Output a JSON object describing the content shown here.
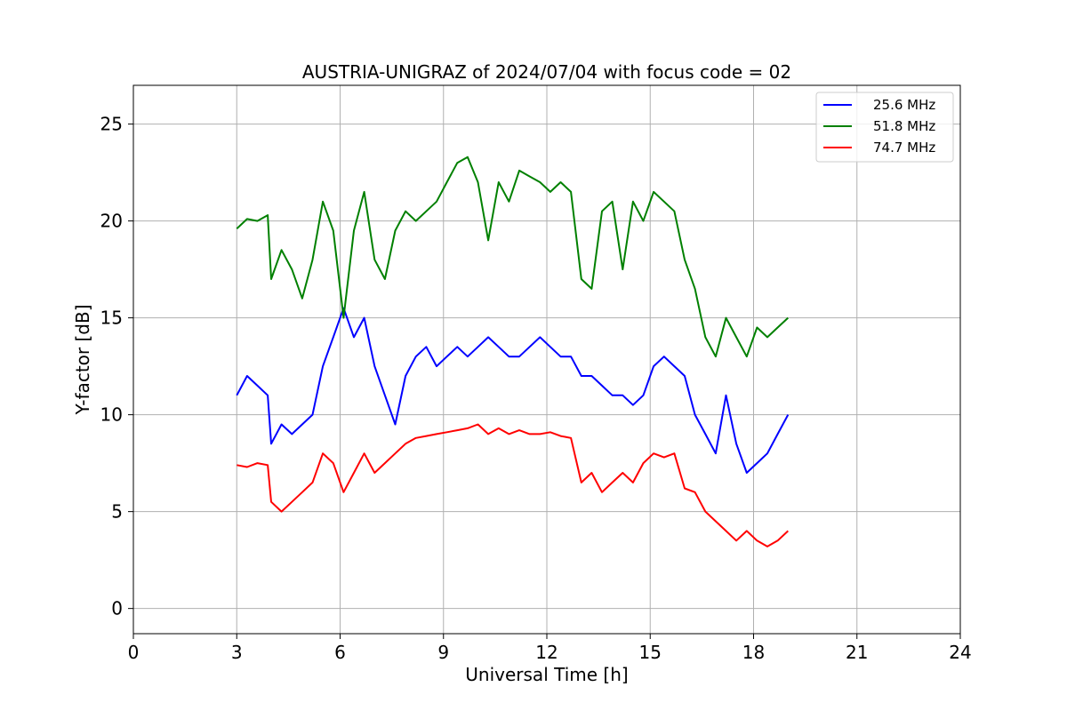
{
  "chart_data": {
    "type": "line",
    "title": "AUSTRIA-UNIGRAZ of 2024/07/04 with focus code = 02",
    "xlabel": "Universal Time [h]",
    "ylabel": "Y-factor [dB]",
    "xlim": [
      0,
      24
    ],
    "ylim": [
      -1.3,
      27
    ],
    "xticks": [
      0,
      3,
      6,
      9,
      12,
      15,
      18,
      21,
      24
    ],
    "yticks": [
      0,
      5,
      10,
      15,
      20,
      25
    ],
    "grid": true,
    "legend_position": "top-right",
    "series": [
      {
        "name": "25.6 MHz",
        "color": "#0000ff",
        "x": [
          3.0,
          3.3,
          3.6,
          3.9,
          4.0,
          4.3,
          4.6,
          4.9,
          5.2,
          5.5,
          5.8,
          6.1,
          6.4,
          6.7,
          7.0,
          7.3,
          7.6,
          7.9,
          8.2,
          8.5,
          8.8,
          9.1,
          9.4,
          9.7,
          10.0,
          10.3,
          10.6,
          10.9,
          11.2,
          11.5,
          11.8,
          12.1,
          12.4,
          12.7,
          13.0,
          13.3,
          13.6,
          13.9,
          14.2,
          14.5,
          14.8,
          15.1,
          15.4,
          15.7,
          16.0,
          16.3,
          16.6,
          16.9,
          17.2,
          17.5,
          17.8,
          18.1,
          18.4,
          18.7,
          19.0
        ],
        "y": [
          11.0,
          12.0,
          11.5,
          11.0,
          8.5,
          9.5,
          9.0,
          9.5,
          10.0,
          12.5,
          14.0,
          15.5,
          14.0,
          15.0,
          12.5,
          11.0,
          9.5,
          12.0,
          13.0,
          13.5,
          12.5,
          13.0,
          13.5,
          13.0,
          13.5,
          14.0,
          13.5,
          13.0,
          13.0,
          13.5,
          14.0,
          13.5,
          13.0,
          13.0,
          12.0,
          12.0,
          11.5,
          11.0,
          11.0,
          10.5,
          11.0,
          12.5,
          13.0,
          12.5,
          12.0,
          10.0,
          9.0,
          8.0,
          11.0,
          8.5,
          7.0,
          7.5,
          8.0,
          9.0,
          10.0
        ]
      },
      {
        "name": "51.8 MHz",
        "color": "#008000",
        "x": [
          3.0,
          3.3,
          3.6,
          3.9,
          4.0,
          4.3,
          4.6,
          4.9,
          5.2,
          5.5,
          5.8,
          6.1,
          6.4,
          6.7,
          7.0,
          7.3,
          7.6,
          7.9,
          8.2,
          8.5,
          8.8,
          9.1,
          9.4,
          9.7,
          10.0,
          10.3,
          10.6,
          10.9,
          11.2,
          11.5,
          11.8,
          12.1,
          12.4,
          12.7,
          13.0,
          13.3,
          13.6,
          13.9,
          14.2,
          14.5,
          14.8,
          15.1,
          15.4,
          15.7,
          16.0,
          16.3,
          16.6,
          16.9,
          17.2,
          17.5,
          17.8,
          18.1,
          18.4,
          18.7,
          19.0
        ],
        "y": [
          19.6,
          20.1,
          20.0,
          20.3,
          17.0,
          18.5,
          17.5,
          16.0,
          18.0,
          21.0,
          19.5,
          15.0,
          19.5,
          21.5,
          18.0,
          17.0,
          19.5,
          20.5,
          20.0,
          20.5,
          21.0,
          22.0,
          23.0,
          23.3,
          22.0,
          19.0,
          22.0,
          21.0,
          22.6,
          22.3,
          22.0,
          21.5,
          22.0,
          21.5,
          17.0,
          16.5,
          20.5,
          21.0,
          17.5,
          21.0,
          20.0,
          21.5,
          21.0,
          20.5,
          18.0,
          16.5,
          14.0,
          13.0,
          15.0,
          14.0,
          13.0,
          14.5,
          14.0,
          14.5,
          15.0
        ]
      },
      {
        "name": "74.7 MHz",
        "color": "#ff0000",
        "x": [
          3.0,
          3.3,
          3.6,
          3.9,
          4.0,
          4.3,
          4.6,
          4.9,
          5.2,
          5.5,
          5.8,
          6.1,
          6.4,
          6.7,
          7.0,
          7.3,
          7.6,
          7.9,
          8.2,
          8.5,
          8.8,
          9.1,
          9.4,
          9.7,
          10.0,
          10.3,
          10.6,
          10.9,
          11.2,
          11.5,
          11.8,
          12.1,
          12.4,
          12.7,
          13.0,
          13.3,
          13.6,
          13.9,
          14.2,
          14.5,
          14.8,
          15.1,
          15.4,
          15.7,
          16.0,
          16.3,
          16.6,
          16.9,
          17.2,
          17.5,
          17.8,
          18.1,
          18.4,
          18.7,
          19.0
        ],
        "y": [
          7.4,
          7.3,
          7.5,
          7.4,
          5.5,
          5.0,
          5.5,
          6.0,
          6.5,
          8.0,
          7.5,
          6.0,
          7.0,
          8.0,
          7.0,
          7.5,
          8.0,
          8.5,
          8.8,
          8.9,
          9.0,
          9.1,
          9.2,
          9.3,
          9.5,
          9.0,
          9.3,
          9.0,
          9.2,
          9.0,
          9.0,
          9.1,
          8.9,
          8.8,
          6.5,
          7.0,
          6.0,
          6.5,
          7.0,
          6.5,
          7.5,
          8.0,
          7.8,
          8.0,
          6.2,
          6.0,
          5.0,
          4.5,
          4.0,
          3.5,
          4.0,
          3.5,
          3.2,
          3.5,
          4.0
        ]
      }
    ]
  }
}
